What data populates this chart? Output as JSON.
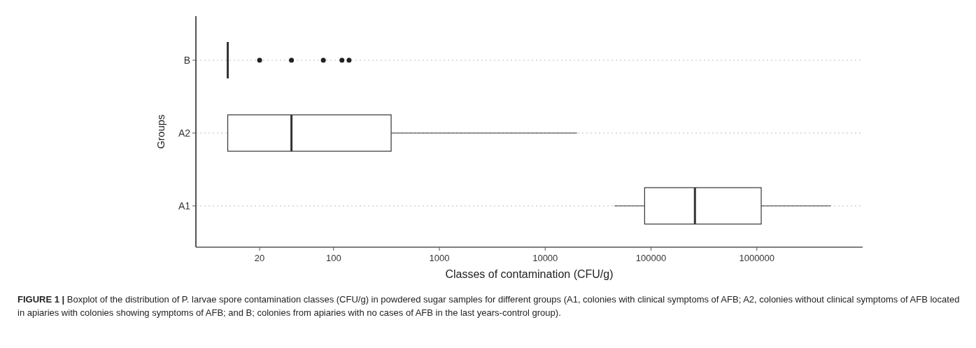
{
  "chart_data": {
    "type": "box",
    "orientation": "horizontal",
    "xlabel": "Classes of contamination (CFU/g)",
    "ylabel": "Groups",
    "categories": [
      "B",
      "A2",
      "A1"
    ],
    "boxes": [
      {
        "low": 10,
        "q1": 10,
        "median": 10,
        "q3": 10,
        "high": 10,
        "outliers": [
          20,
          40,
          80,
          120,
          140
        ]
      },
      {
        "low": 10,
        "q1": 10,
        "median": 40,
        "q3": 350,
        "high": 20000
      },
      {
        "low": 45000,
        "q1": 87000,
        "median": 260000,
        "q3": 1100000,
        "high": 5000000
      }
    ],
    "log": "x",
    "xlim": [
      5,
      10000000
    ],
    "xticks": [
      20,
      100,
      1000,
      10000,
      100000,
      1000000
    ],
    "grid": "y",
    "annotations": [
      "FIGURE 1 |",
      "Boxplot of the distribution of P. larvae spore contamination classes (CFU/g) in powdered sugar samples for different groups (A1, colonies with clinical symptoms of AFB; A2, colonies without clinical symptoms of AFB located in apiaries with colonies showing symptoms of AFB; and B; colonies from apiaries with no cases of AFB in the last years-control group)."
    ]
  }
}
